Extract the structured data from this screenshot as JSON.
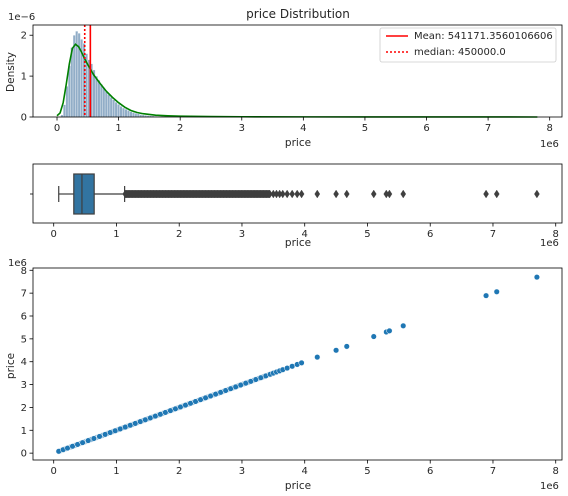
{
  "chart_data": [
    {
      "type": "histogram",
      "title": "price Distribution",
      "xlabel": "price",
      "ylabel": "Density",
      "x_scale_label": "1e6",
      "y_scale_label": "1e−6",
      "xlim": [
        -0.39,
        8.2
      ],
      "ylim": [
        0,
        2.25
      ],
      "x_ticks": [
        0,
        1,
        2,
        3,
        4,
        5,
        6,
        7,
        8
      ],
      "y_ticks": [
        0,
        1,
        2
      ],
      "bins": [
        {
          "x": 0.08,
          "density": 0.05
        },
        {
          "x": 0.12,
          "density": 0.3
        },
        {
          "x": 0.16,
          "density": 0.75
        },
        {
          "x": 0.2,
          "density": 1.25
        },
        {
          "x": 0.24,
          "density": 1.7
        },
        {
          "x": 0.28,
          "density": 2.0
        },
        {
          "x": 0.32,
          "density": 2.1
        },
        {
          "x": 0.36,
          "density": 2.05
        },
        {
          "x": 0.4,
          "density": 1.9
        },
        {
          "x": 0.44,
          "density": 1.8
        },
        {
          "x": 0.48,
          "density": 1.55
        },
        {
          "x": 0.52,
          "density": 1.4
        },
        {
          "x": 0.56,
          "density": 1.3
        },
        {
          "x": 0.6,
          "density": 1.15
        },
        {
          "x": 0.64,
          "density": 1.0
        },
        {
          "x": 0.68,
          "density": 0.9
        },
        {
          "x": 0.72,
          "density": 0.8
        },
        {
          "x": 0.76,
          "density": 0.72
        },
        {
          "x": 0.8,
          "density": 0.62
        },
        {
          "x": 0.84,
          "density": 0.55
        },
        {
          "x": 0.88,
          "density": 0.48
        },
        {
          "x": 0.92,
          "density": 0.42
        },
        {
          "x": 0.96,
          "density": 0.36
        },
        {
          "x": 1.0,
          "density": 0.31
        },
        {
          "x": 1.04,
          "density": 0.26
        },
        {
          "x": 1.08,
          "density": 0.22
        },
        {
          "x": 1.12,
          "density": 0.19
        },
        {
          "x": 1.16,
          "density": 0.16
        },
        {
          "x": 1.2,
          "density": 0.13
        },
        {
          "x": 1.24,
          "density": 0.11
        },
        {
          "x": 1.28,
          "density": 0.09
        },
        {
          "x": 1.32,
          "density": 0.08
        },
        {
          "x": 1.36,
          "density": 0.06
        },
        {
          "x": 1.4,
          "density": 0.05
        },
        {
          "x": 1.44,
          "density": 0.04
        },
        {
          "x": 1.48,
          "density": 0.035
        },
        {
          "x": 1.52,
          "density": 0.03
        },
        {
          "x": 1.56,
          "density": 0.025
        },
        {
          "x": 1.6,
          "density": 0.02
        },
        {
          "x": 1.7,
          "density": 0.015
        }
      ],
      "kde": [
        [
          0.0,
          0.03
        ],
        [
          0.05,
          0.1
        ],
        [
          0.1,
          0.35
        ],
        [
          0.15,
          0.8
        ],
        [
          0.2,
          1.3
        ],
        [
          0.25,
          1.68
        ],
        [
          0.3,
          1.78
        ],
        [
          0.35,
          1.72
        ],
        [
          0.4,
          1.58
        ],
        [
          0.45,
          1.42
        ],
        [
          0.5,
          1.28
        ],
        [
          0.6,
          1.02
        ],
        [
          0.7,
          0.82
        ],
        [
          0.8,
          0.63
        ],
        [
          0.9,
          0.48
        ],
        [
          1.0,
          0.35
        ],
        [
          1.1,
          0.24
        ],
        [
          1.2,
          0.16
        ],
        [
          1.3,
          0.11
        ],
        [
          1.4,
          0.08
        ],
        [
          1.6,
          0.045
        ],
        [
          1.8,
          0.03
        ],
        [
          2.0,
          0.02
        ],
        [
          2.5,
          0.01
        ],
        [
          3.0,
          0.006
        ],
        [
          4.0,
          0.003
        ],
        [
          5.0,
          0.002
        ],
        [
          6.0,
          0.001
        ],
        [
          7.0,
          0.001
        ],
        [
          7.8,
          0.0
        ]
      ],
      "mean": 0.5411713560106606,
      "median": 0.45,
      "legend": {
        "placement": "upper-right",
        "mean_label": "Mean: 541171.3560106606",
        "median_label": "median: 450000.0"
      },
      "colors": {
        "bars": "#6c92b4",
        "kde": "#008000",
        "mean": "#ff0000",
        "median": "#ff0000"
      }
    },
    {
      "type": "boxplot",
      "xlabel": "price",
      "x_scale_label": "1e6",
      "xlim": [
        -0.33,
        8.1
      ],
      "x_ticks": [
        0,
        1,
        2,
        3,
        4,
        5,
        6,
        7,
        8
      ],
      "whisker_low": 0.08,
      "q1": 0.32,
      "median": 0.45,
      "q3": 0.645,
      "whisker_high": 1.13,
      "outliers": [
        3.5,
        3.55,
        3.6,
        3.65,
        3.72,
        3.8,
        3.88,
        3.95,
        4.2,
        4.5,
        4.67,
        5.1,
        5.3,
        5.35,
        5.57,
        6.89,
        7.06,
        7.7
      ],
      "dense_outlier_range": [
        1.13,
        3.45
      ],
      "colors": {
        "box": "#3274a1",
        "lines": "#3f3f3f"
      }
    },
    {
      "type": "scatter",
      "xlabel": "price",
      "ylabel": "price",
      "x_scale_label": "1e6",
      "y_scale_label": "1e6",
      "xlim": [
        -0.33,
        8.1
      ],
      "ylim": [
        -0.3,
        8.1
      ],
      "x_ticks": [
        0,
        1,
        2,
        3,
        4,
        5,
        6,
        7,
        8
      ],
      "y_ticks": [
        0,
        1,
        2,
        3,
        4,
        5,
        6,
        7,
        8
      ],
      "points": [
        0.08,
        0.15,
        0.22,
        0.3,
        0.38,
        0.46,
        0.55,
        0.64,
        0.73,
        0.82,
        0.9,
        0.98,
        1.06,
        1.14,
        1.22,
        1.3,
        1.38,
        1.46,
        1.54,
        1.62,
        1.7,
        1.78,
        1.86,
        1.94,
        2.02,
        2.1,
        2.18,
        2.26,
        2.34,
        2.42,
        2.5,
        2.58,
        2.66,
        2.74,
        2.82,
        2.9,
        2.98,
        3.06,
        3.14,
        3.22,
        3.3,
        3.38,
        3.45,
        3.5,
        3.55,
        3.6,
        3.65,
        3.72,
        3.8,
        3.88,
        3.95,
        4.2,
        4.5,
        4.67,
        5.1,
        5.3,
        5.35,
        5.57,
        6.89,
        7.06,
        7.7
      ],
      "colors": {
        "points": "#1f77b4",
        "edge": "#ffffff"
      }
    }
  ]
}
